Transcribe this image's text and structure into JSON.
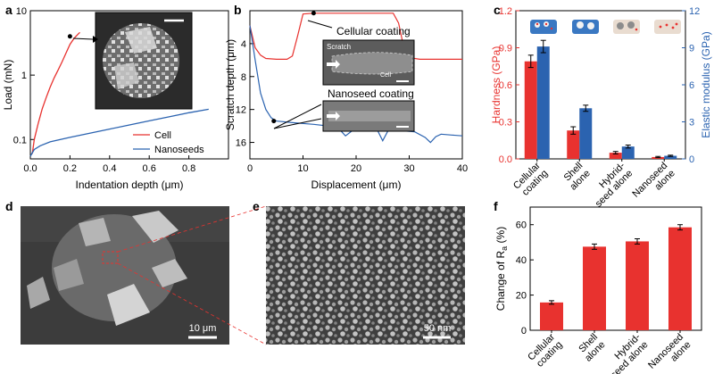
{
  "panel_letters": [
    "a",
    "b",
    "c",
    "d",
    "e",
    "f"
  ],
  "colors": {
    "red": "#e8322f",
    "blue": "#2b63b0",
    "sem_dark": "#3a3a3a",
    "sem_light": "#bdbdbd"
  },
  "chart_data": [
    {
      "panel": "a",
      "type": "line",
      "xlabel": "Indentation depth (μm)",
      "ylabel": "Load (mN)",
      "xlim": [
        0,
        1.0
      ],
      "ylim": [
        0.05,
        10
      ],
      "yscale": "log",
      "xticks": [
        "0.0",
        "0.2",
        "0.4",
        "0.6",
        "0.8"
      ],
      "yticks": [
        "0.1",
        "1",
        "10"
      ],
      "legend": "bottom-right",
      "series": [
        {
          "name": "Cell",
          "color": "#e8322f",
          "x": [
            0.01,
            0.02,
            0.04,
            0.06,
            0.08,
            0.1,
            0.12,
            0.14,
            0.16,
            0.18,
            0.2,
            0.22,
            0.24,
            0.25
          ],
          "y": [
            0.06,
            0.1,
            0.18,
            0.3,
            0.45,
            0.65,
            0.9,
            1.2,
            1.6,
            2.2,
            3.0,
            3.7,
            4.3,
            4.6
          ]
        },
        {
          "name": "Nanoseeds",
          "color": "#2b63b0",
          "x": [
            0.0,
            0.02,
            0.05,
            0.1,
            0.2,
            0.3,
            0.4,
            0.5,
            0.6,
            0.7,
            0.8,
            0.9
          ],
          "y": [
            0.055,
            0.07,
            0.08,
            0.092,
            0.108,
            0.125,
            0.145,
            0.168,
            0.195,
            0.225,
            0.26,
            0.295
          ]
        }
      ],
      "annotation": {
        "x": 0.2,
        "y": 4.0,
        "label": "inset SEM"
      }
    },
    {
      "panel": "b",
      "type": "line",
      "xlabel": "Displacement (μm)",
      "ylabel": "Scratch depth (μm)",
      "xlim": [
        0,
        40
      ],
      "ylim": [
        18,
        0
      ],
      "xticks": [
        "0",
        "10",
        "20",
        "30",
        "40"
      ],
      "yticks": [
        "4",
        "8",
        "12",
        "16"
      ],
      "series": [
        {
          "name": "",
          "color": "#e8322f",
          "x": [
            0,
            1,
            2,
            3,
            5,
            7,
            8,
            9,
            10,
            12,
            20,
            27,
            28,
            29,
            30,
            32,
            35,
            38,
            40
          ],
          "y": [
            1.8,
            4.5,
            5.4,
            5.8,
            5.9,
            5.9,
            5.5,
            3.0,
            0.4,
            0.3,
            0.3,
            0.3,
            1.5,
            4.5,
            5.7,
            5.9,
            5.9,
            5.9,
            5.9
          ]
        },
        {
          "name": "",
          "color": "#2b63b0",
          "x": [
            0,
            1,
            2,
            3,
            4,
            5,
            8,
            12,
            16,
            17,
            18,
            19,
            20,
            24,
            25,
            26,
            27,
            31,
            33,
            34,
            35,
            36,
            38,
            40
          ],
          "y": [
            1.8,
            6,
            10,
            12,
            13,
            13.4,
            13.6,
            13.8,
            14.1,
            14.5,
            15.2,
            14.7,
            14.3,
            14.5,
            15.8,
            14.6,
            14.5,
            14.7,
            15.4,
            16.0,
            15.3,
            15.0,
            15.1,
            15.2
          ]
        }
      ],
      "annotations": [
        "Cellular coating",
        "Nanoseed coating"
      ],
      "inset_labels": [
        "Scratch",
        "Cell"
      ],
      "markers": [
        {
          "x": 12,
          "y": 0.3
        },
        {
          "x": 4.5,
          "y": 13.4
        }
      ]
    },
    {
      "panel": "c",
      "type": "bar",
      "ylabel_left": "Hardness (GPa)",
      "ylabel_right": "Elastic modulus (GPa)",
      "categories": [
        "Cellular coating",
        "Shell alone",
        "Hybrid-seed alone",
        "Nanoseed alone"
      ],
      "category_lines": [
        [
          "Cellular",
          "coating"
        ],
        [
          "Shell",
          "alone"
        ],
        [
          "Hybrid-",
          "seed alone"
        ],
        [
          "Nanoseed",
          "alone"
        ]
      ],
      "ylim_left": [
        0,
        1.2
      ],
      "ylim_right": [
        0,
        12
      ],
      "yticks_left": [
        "0.0",
        "0.3",
        "0.6",
        "0.9",
        "1.2"
      ],
      "yticks_right": [
        "0",
        "3",
        "6",
        "9",
        "12"
      ],
      "series": [
        {
          "name": "Hardness",
          "color": "#e8322f",
          "axis": "left",
          "values": [
            0.79,
            0.23,
            0.05,
            0.015
          ],
          "errors": [
            0.05,
            0.03,
            0.01,
            0.005
          ]
        },
        {
          "name": "Elastic modulus",
          "color": "#2b63b0",
          "axis": "right",
          "values": [
            9.1,
            4.1,
            1.0,
            0.25
          ],
          "errors": [
            0.5,
            0.25,
            0.12,
            0.05
          ]
        }
      ]
    },
    {
      "panel": "f",
      "type": "bar",
      "ylabel": "Change of R_a (%)",
      "ylabel_main": "Change of R",
      "ylabel_sub": "a",
      "ylabel_tail": " (%)",
      "categories": [
        "Cellular coating",
        "Shell alone",
        "Hybrid-seed alone",
        "Nanoseed alone"
      ],
      "category_lines": [
        [
          "Cellular",
          "coating"
        ],
        [
          "Shell",
          "alone"
        ],
        [
          "Hybrid-",
          "seed alone"
        ],
        [
          "Nanoseed",
          "alone"
        ]
      ],
      "ylim": [
        0,
        70
      ],
      "yticks": [
        "0",
        "20",
        "40",
        "60"
      ],
      "values": [
        15.8,
        47.5,
        50.5,
        58.5
      ],
      "errors": [
        1.0,
        1.5,
        1.5,
        1.5
      ],
      "color": "#e8322f"
    }
  ],
  "images": {
    "d": {
      "scalebar_label": "10 μm"
    },
    "e": {
      "scalebar_label": "50 nm"
    }
  }
}
